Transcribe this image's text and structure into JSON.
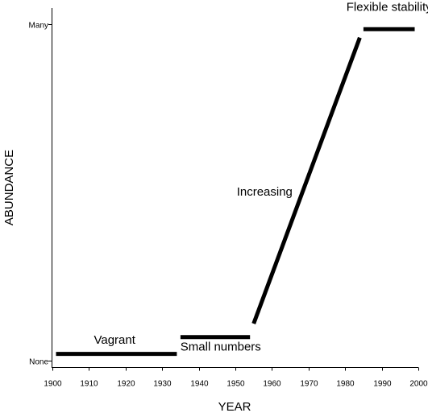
{
  "chart_data": {
    "type": "line",
    "title": "",
    "xlabel": "YEAR",
    "ylabel": "ABUNDANCE",
    "xlim": [
      1900,
      2000
    ],
    "x_ticks": [
      1900,
      1910,
      1920,
      1930,
      1940,
      1950,
      1960,
      1970,
      1980,
      1990,
      2000
    ],
    "ylim": [
      0,
      1
    ],
    "y_tick_labels": [
      {
        "value": 0,
        "label": "None"
      },
      {
        "value": 1,
        "label": "Many"
      }
    ],
    "grid": false,
    "color": "#000000",
    "series": [
      {
        "x": [
          1901,
          1934
        ],
        "y": [
          0.02,
          0.02
        ]
      },
      {
        "x": [
          1935,
          1954
        ],
        "y": [
          0.07,
          0.07
        ]
      },
      {
        "x": [
          1955,
          1984
        ],
        "y": [
          0.11,
          0.96
        ]
      },
      {
        "x": [
          1985,
          1999
        ],
        "y": [
          0.985,
          0.985
        ]
      }
    ],
    "annotations": [
      {
        "text": "Vagrant",
        "x": 1917,
        "y": 0.05
      },
      {
        "text": "Small numbers",
        "x": 1946,
        "y": 0.03
      },
      {
        "text": "Increasing",
        "x": 1958,
        "y": 0.49
      },
      {
        "text": "Flexible stability",
        "x": 1992,
        "y": 1.04
      }
    ]
  }
}
